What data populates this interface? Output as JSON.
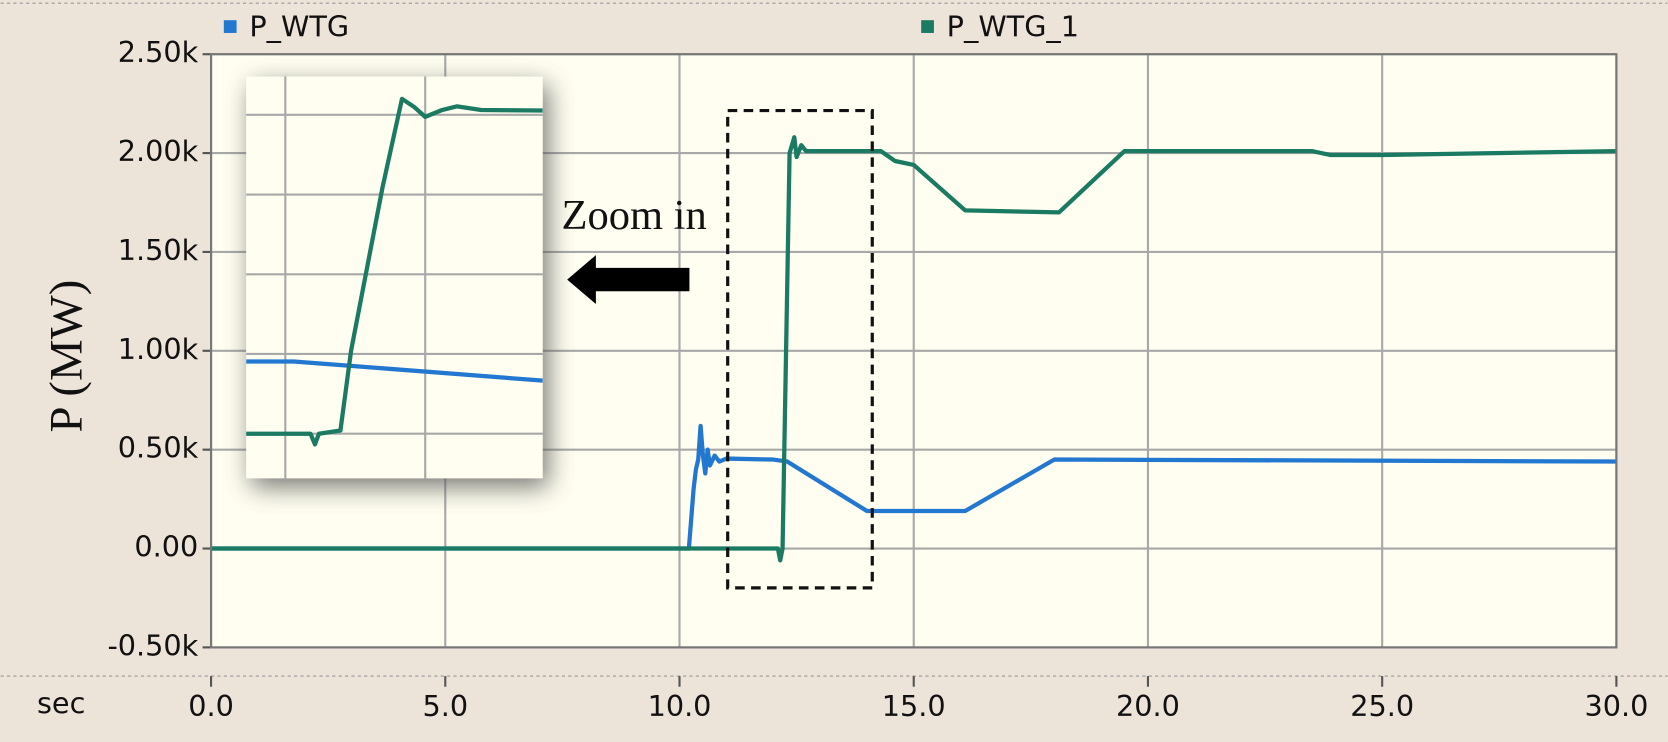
{
  "chart_data": [
    {
      "type": "line",
      "x_label": "sec",
      "y_label": "P (MW)",
      "annotation": "Zoom in",
      "legend": "top",
      "grid": true,
      "xlim": [
        0,
        30
      ],
      "ylim": [
        -500,
        2500
      ],
      "xticks": [
        {
          "value": 0,
          "label": "0.0"
        },
        {
          "value": 5,
          "label": "5.0"
        },
        {
          "value": 10,
          "label": "10.0"
        },
        {
          "value": 15,
          "label": "15.0"
        },
        {
          "value": 20,
          "label": "20.0"
        },
        {
          "value": 25,
          "label": "25.0"
        },
        {
          "value": 30,
          "label": "30.0"
        }
      ],
      "yticks": [
        {
          "value": -500,
          "label": "-0.50k"
        },
        {
          "value": 0,
          "label": "0.00"
        },
        {
          "value": 500,
          "label": "0.50k"
        },
        {
          "value": 1000,
          "label": "1.00k"
        },
        {
          "value": 1500,
          "label": "1.50k"
        },
        {
          "value": 2000,
          "label": "2.00k"
        },
        {
          "value": 2500,
          "label": "2.50k"
        }
      ],
      "series": [
        {
          "name": "P_WTG",
          "color": "#2277d0",
          "x": [
            0,
            10.2,
            10.3,
            10.35,
            10.4,
            10.45,
            10.5,
            10.55,
            10.6,
            10.65,
            10.75,
            10.85,
            11,
            12.0,
            12.3,
            14.0,
            16.1,
            18.0,
            30
          ],
          "values": [
            0,
            0,
            300,
            400,
            450,
            620,
            470,
            380,
            500,
            420,
            470,
            440,
            455,
            450,
            440,
            190,
            190,
            450,
            440
          ]
        },
        {
          "name": "P_WTG_1",
          "color": "#1a7a62",
          "x": [
            0,
            12.1,
            12.15,
            12.2,
            12.35,
            12.45,
            12.5,
            12.6,
            12.7,
            14.3,
            14.6,
            15,
            16.1,
            18.1,
            19.5,
            23.5,
            23.9,
            25,
            30
          ],
          "values": [
            0,
            0,
            -60,
            0,
            2000,
            2080,
            1980,
            2040,
            2010,
            2010,
            1960,
            1940,
            1710,
            1700,
            2010,
            2010,
            1990,
            1990,
            2010
          ]
        }
      ]
    },
    {
      "type": "line",
      "grid": true,
      "xlim": [
        11.86,
        12.92
      ],
      "ylim": [
        -280,
        2240
      ],
      "xticks": [
        12,
        12.5
      ],
      "yticks": [
        0,
        500,
        1000,
        1500,
        2000
      ],
      "series": [
        {
          "color": "#2277d0",
          "x": [
            11.86,
            12.03,
            12.92
          ],
          "values": [
            453,
            453,
            333
          ]
        },
        {
          "color": "#1a7a62",
          "x": [
            11.86,
            12.09,
            12.106,
            12.12,
            12.197,
            12.235,
            12.348,
            12.417,
            12.46,
            12.5,
            12.56,
            12.614,
            12.7,
            12.92
          ],
          "values": [
            0,
            0,
            -67,
            0,
            20,
            520,
            1550,
            2100,
            2050,
            1987,
            2030,
            2053,
            2030,
            2027
          ]
        }
      ]
    }
  ]
}
